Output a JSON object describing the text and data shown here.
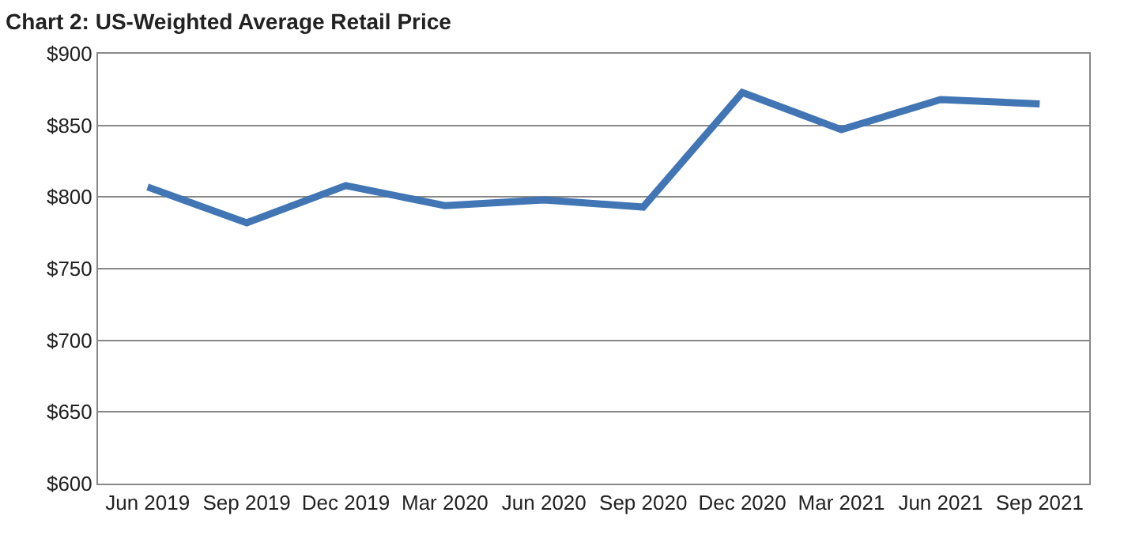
{
  "chart_data": {
    "type": "line",
    "title": "Chart 2: US-Weighted Average Retail Price",
    "categories": [
      "Jun 2019",
      "Sep 2019",
      "Dec 2019",
      "Mar 2020",
      "Jun 2020",
      "Sep 2020",
      "Dec 2020",
      "Mar 2021",
      "Jun 2021",
      "Sep 2021"
    ],
    "series": [
      {
        "color": "#4175b4",
        "values": [
          807,
          782,
          808,
          794,
          798,
          793,
          873,
          847,
          868,
          865
        ]
      }
    ],
    "ylim": [
      600,
      900
    ],
    "yticks": [
      {
        "value": 600,
        "label": "$600"
      },
      {
        "value": 650,
        "label": "$650"
      },
      {
        "value": 700,
        "label": "$700"
      },
      {
        "value": 750,
        "label": "$750"
      },
      {
        "value": 800,
        "label": "$800"
      },
      {
        "value": 850,
        "label": "$850"
      },
      {
        "value": 900,
        "label": "$900"
      }
    ],
    "grid": "y",
    "legend": false,
    "marker": "none",
    "line_style": "solid"
  }
}
